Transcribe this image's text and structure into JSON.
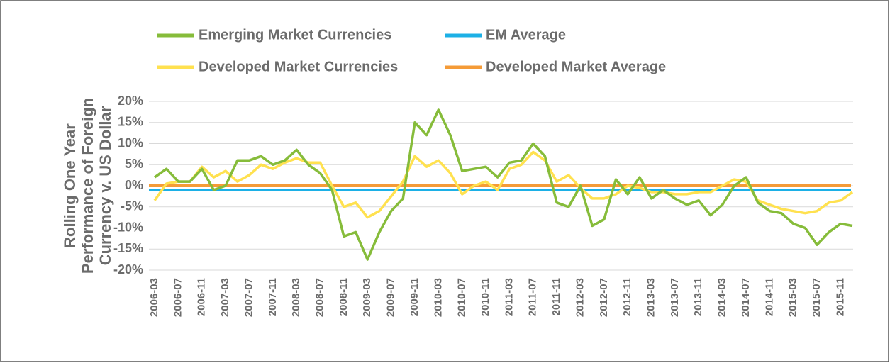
{
  "chart_data": {
    "type": "line",
    "y_label": [
      "Rolling One Year",
      "Performance of Foreign",
      "Currency v. US Dollar"
    ],
    "categories": [
      "2006-03",
      null,
      "2006-07",
      null,
      "2006-11",
      null,
      "2007-03",
      null,
      "2007-07",
      null,
      "2007-11",
      null,
      "2008-03",
      null,
      "2008-07",
      null,
      "2008-11",
      null,
      "2009-03",
      null,
      "2009-07",
      null,
      "2009-11",
      null,
      "2010-03",
      null,
      "2010-07",
      null,
      "2010-11",
      null,
      "2011-03",
      null,
      "2011-07",
      null,
      "2011-11",
      null,
      "2012-03",
      null,
      "2012-07",
      null,
      "2012-11",
      null,
      "2013-03",
      null,
      "2013-07",
      null,
      "2013-11",
      null,
      "2014-03",
      null,
      "2014-07",
      null,
      "2014-11",
      null,
      "2015-03",
      null,
      "2015-07",
      null,
      "2015-11",
      null
    ],
    "series": [
      {
        "name": "Emerging Market Currencies",
        "color": "#86bc3a",
        "values": [
          2,
          4,
          1,
          1,
          4,
          -1,
          0,
          6,
          6,
          7,
          5,
          6,
          8.5,
          5,
          3,
          -1,
          -12,
          -11,
          -17.5,
          -11,
          -6,
          -3,
          15,
          12,
          18,
          12,
          3.5,
          4,
          4.5,
          2,
          5.5,
          6,
          10,
          7,
          -4,
          -5,
          0,
          -9.5,
          -8,
          1.5,
          -2,
          2,
          -3,
          -1,
          -3,
          -4.5,
          -3.5,
          -7,
          -4.5,
          0,
          2,
          -4,
          -6,
          -6.5,
          -9,
          -10,
          -14,
          -11,
          -9,
          -9.5
        ]
      },
      {
        "name": "Developed Market Currencies",
        "color": "#ffe14f",
        "values": [
          -3.5,
          0.5,
          1,
          1,
          4.5,
          2,
          3.5,
          1,
          2.5,
          5,
          4,
          5.5,
          6.5,
          5.5,
          5.5,
          0,
          -5,
          -4,
          -7.5,
          -6,
          -2.5,
          1,
          7,
          4.5,
          6,
          3,
          -2,
          0,
          1,
          -1,
          4,
          5,
          8,
          6,
          1,
          2.5,
          -0.5,
          -3,
          -3,
          -2,
          0,
          -0.5,
          -1.5,
          -1.5,
          -2,
          -2,
          -1.5,
          -1.5,
          0,
          1.5,
          1,
          -3.5,
          -4.5,
          -5.5,
          -6,
          -6.5,
          -6,
          -4,
          -3.5,
          -1.5
        ]
      }
    ],
    "averages": [
      {
        "name": "EM Average",
        "color": "#1cb0e6",
        "value": -1
      },
      {
        "name": "Developed Market Average",
        "color": "#f59b37",
        "value": 0
      }
    ],
    "ylim": [
      -20,
      20
    ],
    "yticks": [
      {
        "value": -20,
        "label": "-20%"
      },
      {
        "value": -15,
        "label": "-15%"
      },
      {
        "value": -10,
        "label": "-10%"
      },
      {
        "value": -5,
        "label": "-5%"
      },
      {
        "value": 0,
        "label": "0%"
      },
      {
        "value": 5,
        "label": "5%"
      },
      {
        "value": 10,
        "label": "10%"
      },
      {
        "value": 15,
        "label": "15%"
      },
      {
        "value": 20,
        "label": "20%"
      }
    ],
    "grid": true
  }
}
